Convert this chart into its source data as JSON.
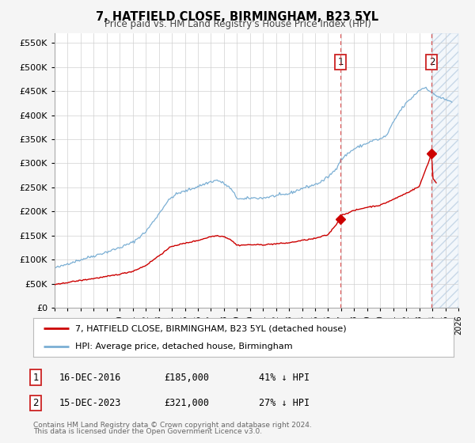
{
  "title": "7, HATFIELD CLOSE, BIRMINGHAM, B23 5YL",
  "subtitle": "Price paid vs. HM Land Registry's House Price Index (HPI)",
  "legend_property": "7, HATFIELD CLOSE, BIRMINGHAM, B23 5YL (detached house)",
  "legend_hpi": "HPI: Average price, detached house, Birmingham",
  "property_color": "#cc0000",
  "hpi_color": "#7bafd4",
  "annotation1_date": "16-DEC-2016",
  "annotation1_price": "£185,000",
  "annotation1_pct": "41% ↓ HPI",
  "annotation2_date": "15-DEC-2023",
  "annotation2_price": "£321,000",
  "annotation2_pct": "27% ↓ HPI",
  "annotation1_year": 2016.96,
  "annotation2_year": 2023.96,
  "annotation1_value": 185000,
  "annotation2_value": 321000,
  "ylabel_ticks": [
    0,
    50000,
    100000,
    150000,
    200000,
    250000,
    300000,
    350000,
    400000,
    450000,
    500000,
    550000
  ],
  "ylabel_labels": [
    "£0",
    "£50K",
    "£100K",
    "£150K",
    "£200K",
    "£250K",
    "£300K",
    "£350K",
    "£400K",
    "£450K",
    "£500K",
    "£550K"
  ],
  "xmin": 1995,
  "xmax": 2026,
  "ymin": 0,
  "ymax": 570000,
  "footer1": "Contains HM Land Registry data © Crown copyright and database right 2024.",
  "footer2": "This data is licensed under the Open Government Licence v3.0.",
  "background_color": "#f5f5f5",
  "plot_background": "#ffffff"
}
